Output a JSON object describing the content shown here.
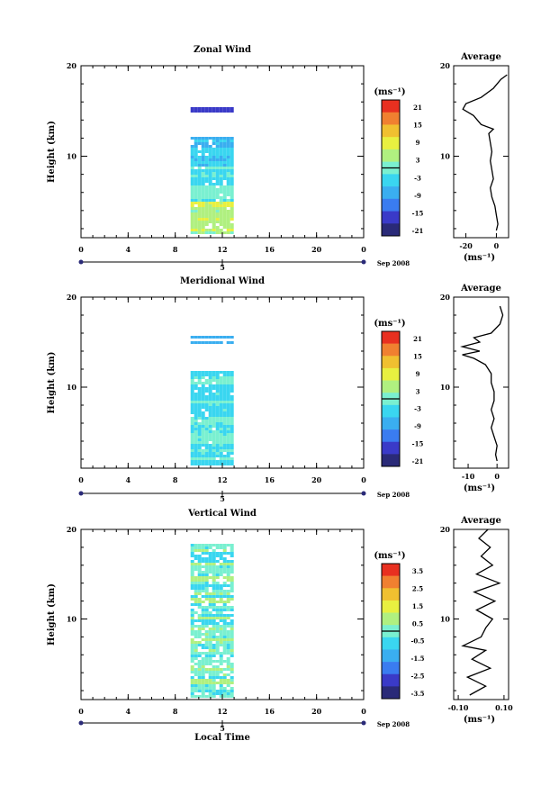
{
  "chart_data": [
    {
      "type": "heatmap",
      "title": "Zonal Wind",
      "ylabel": "Height (km)",
      "yticks": [
        "20",
        "10"
      ],
      "xticks": [
        "0",
        "4",
        "8",
        "12",
        "16",
        "20",
        "0"
      ],
      "xlim": [
        0,
        24
      ],
      "ylim": [
        1,
        20
      ],
      "date_tick": "5",
      "date_label": "Sep 2008",
      "colorbar_unit": "(ms⁻¹)",
      "colorbar_labels": [
        "21",
        "15",
        "9",
        "3",
        "-3",
        "-9",
        "-15",
        "-21"
      ],
      "data_time_range": [
        9.3,
        12.7
      ],
      "average": {
        "title": "Average",
        "yticks": [
          "20",
          "10"
        ],
        "xticks": [
          "-20",
          "0"
        ],
        "xlim": [
          -28,
          8
        ],
        "xunit": "(ms⁻¹)",
        "profile": [
          [
            1.8,
            0
          ],
          [
            2.5,
            1
          ],
          [
            3.5,
            0
          ],
          [
            4.5,
            -1
          ],
          [
            5.5,
            -3
          ],
          [
            6.5,
            -4
          ],
          [
            7.5,
            -2
          ],
          [
            8.5,
            -3
          ],
          [
            9.5,
            -4
          ],
          [
            10.5,
            -3
          ],
          [
            11.5,
            -4
          ],
          [
            12.5,
            -5
          ],
          [
            13,
            -2
          ],
          [
            13.5,
            -10
          ],
          [
            14.5,
            -15
          ],
          [
            15.2,
            -22
          ],
          [
            15.8,
            -20
          ],
          [
            16.5,
            -10
          ],
          [
            17.5,
            -2
          ],
          [
            18.5,
            3
          ],
          [
            19,
            7
          ]
        ]
      }
    },
    {
      "type": "heatmap",
      "title": "Meridional Wind",
      "ylabel": "Height (km)",
      "yticks": [
        "20",
        "10"
      ],
      "xticks": [
        "0",
        "4",
        "8",
        "12",
        "16",
        "20",
        "0"
      ],
      "xlim": [
        0,
        24
      ],
      "ylim": [
        1,
        20
      ],
      "date_tick": "5",
      "date_label": "Sep 2008",
      "colorbar_unit": "(ms⁻¹)",
      "colorbar_labels": [
        "21",
        "15",
        "9",
        "3",
        "-3",
        "-9",
        "-15",
        "-21"
      ],
      "data_time_range": [
        9.3,
        12.7
      ],
      "average": {
        "title": "Average",
        "yticks": [
          "20",
          "10"
        ],
        "xticks": [
          "-10",
          "0"
        ],
        "xlim": [
          -15,
          4
        ],
        "xunit": "(ms⁻¹)",
        "profile": [
          [
            1.8,
            0
          ],
          [
            2.5,
            -0.5
          ],
          [
            3.5,
            0
          ],
          [
            4.5,
            -1
          ],
          [
            5.5,
            -2
          ],
          [
            6.5,
            -1
          ],
          [
            7.5,
            -2
          ],
          [
            8.5,
            -1
          ],
          [
            9.5,
            -1
          ],
          [
            10.5,
            -2
          ],
          [
            11.5,
            -2
          ],
          [
            12.5,
            -4
          ],
          [
            13.2,
            -8
          ],
          [
            13.6,
            -12
          ],
          [
            14,
            -6
          ],
          [
            14.5,
            -12
          ],
          [
            15,
            -6
          ],
          [
            15.5,
            -8
          ],
          [
            16,
            -2
          ],
          [
            17,
            1
          ],
          [
            18,
            2
          ],
          [
            19,
            1
          ]
        ]
      }
    },
    {
      "type": "heatmap",
      "title": "Vertical Wind",
      "ylabel": "Height (km)",
      "xlabel": "Local Time",
      "yticks": [
        "20",
        "10"
      ],
      "xticks": [
        "0",
        "4",
        "8",
        "12",
        "16",
        "20",
        "0"
      ],
      "xlim": [
        0,
        24
      ],
      "ylim": [
        1,
        20
      ],
      "date_tick": "5",
      "date_label": "Sep 2008",
      "colorbar_unit": "(ms⁻¹)",
      "colorbar_labels": [
        "3.5",
        "2.5",
        "1.5",
        "0.5",
        "-0.5",
        "-1.5",
        "-2.5",
        "-3.5"
      ],
      "data_time_range": [
        9.3,
        12.7
      ],
      "average": {
        "title": "Average",
        "yticks": [
          "20",
          "10"
        ],
        "xticks": [
          "-0.10",
          "0.10"
        ],
        "xlim": [
          -0.12,
          0.12
        ],
        "xunit": "(ms⁻¹)",
        "profile": [
          [
            1.5,
            -0.05
          ],
          [
            2.5,
            0.02
          ],
          [
            3.5,
            -0.06
          ],
          [
            4.5,
            0.04
          ],
          [
            5.5,
            -0.04
          ],
          [
            6.5,
            0.02
          ],
          [
            7,
            -0.08
          ],
          [
            8,
            0.0
          ],
          [
            9,
            0.02
          ],
          [
            10,
            0.05
          ],
          [
            11,
            -0.02
          ],
          [
            12,
            0.06
          ],
          [
            13,
            -0.03
          ],
          [
            14,
            0.08
          ],
          [
            15,
            -0.02
          ],
          [
            16,
            0.05
          ],
          [
            17,
            0.0
          ],
          [
            18,
            0.04
          ],
          [
            19,
            -0.01
          ],
          [
            20,
            0.03
          ]
        ]
      }
    }
  ],
  "footer": {
    "xlabel": "Local Time"
  }
}
